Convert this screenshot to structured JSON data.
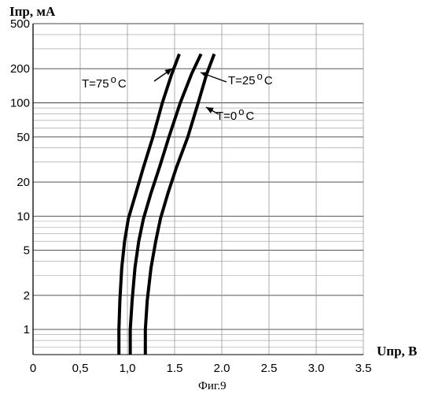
{
  "chart_data": {
    "type": "line",
    "title": "",
    "ylabel": "Iпр, мА",
    "xlabel": "Uпр, В",
    "caption": "Фиг.9",
    "y_scale": "log",
    "xlim": [
      0,
      3.5
    ],
    "ylim": [
      0.6,
      500
    ],
    "x_ticks": [
      {
        "value": 0,
        "label": "0"
      },
      {
        "value": 0.5,
        "label": "0,5"
      },
      {
        "value": 1.0,
        "label": "1,0"
      },
      {
        "value": 1.5,
        "label": "1.5"
      },
      {
        "value": 2.0,
        "label": "2.0"
      },
      {
        "value": 2.5,
        "label": "2.5"
      },
      {
        "value": 3.0,
        "label": "3.0"
      },
      {
        "value": 3.5,
        "label": "3.5"
      }
    ],
    "y_ticks": [
      {
        "value": 500,
        "label": "500"
      },
      {
        "value": 200,
        "label": "200"
      },
      {
        "value": 100,
        "label": "100"
      },
      {
        "value": 50,
        "label": "50"
      },
      {
        "value": 20,
        "label": "20"
      },
      {
        "value": 10,
        "label": "10"
      },
      {
        "value": 5,
        "label": "5"
      },
      {
        "value": 2,
        "label": "2"
      },
      {
        "value": 1,
        "label": "1"
      }
    ],
    "grid": true,
    "series": [
      {
        "name": "T=75°C",
        "label_main": "T=75",
        "label_unit": "C",
        "points": [
          [
            0.91,
            0.6
          ],
          [
            0.91,
            1.0
          ],
          [
            0.92,
            1.8
          ],
          [
            0.94,
            3.5
          ],
          [
            0.97,
            6.0
          ],
          [
            1.01,
            9.5
          ],
          [
            1.09,
            16
          ],
          [
            1.17,
            27
          ],
          [
            1.27,
            50
          ],
          [
            1.37,
            100
          ],
          [
            1.47,
            180
          ],
          [
            1.55,
            270
          ]
        ]
      },
      {
        "name": "T=25°C",
        "label_main": "T=25",
        "label_unit": "C",
        "points": [
          [
            1.03,
            0.6
          ],
          [
            1.03,
            1.0
          ],
          [
            1.05,
            1.8
          ],
          [
            1.08,
            3.5
          ],
          [
            1.12,
            6.0
          ],
          [
            1.17,
            9.5
          ],
          [
            1.25,
            16
          ],
          [
            1.34,
            27
          ],
          [
            1.44,
            50
          ],
          [
            1.56,
            100
          ],
          [
            1.68,
            180
          ],
          [
            1.78,
            270
          ]
        ]
      },
      {
        "name": "T=0°C",
        "label_main": "T=0",
        "label_unit": "C",
        "points": [
          [
            1.19,
            0.6
          ],
          [
            1.19,
            1.0
          ],
          [
            1.21,
            1.8
          ],
          [
            1.25,
            3.5
          ],
          [
            1.3,
            6.0
          ],
          [
            1.35,
            9.5
          ],
          [
            1.43,
            16
          ],
          [
            1.52,
            27
          ],
          [
            1.64,
            50
          ],
          [
            1.75,
            100
          ],
          [
            1.84,
            180
          ],
          [
            1.92,
            270
          ]
        ]
      }
    ]
  }
}
